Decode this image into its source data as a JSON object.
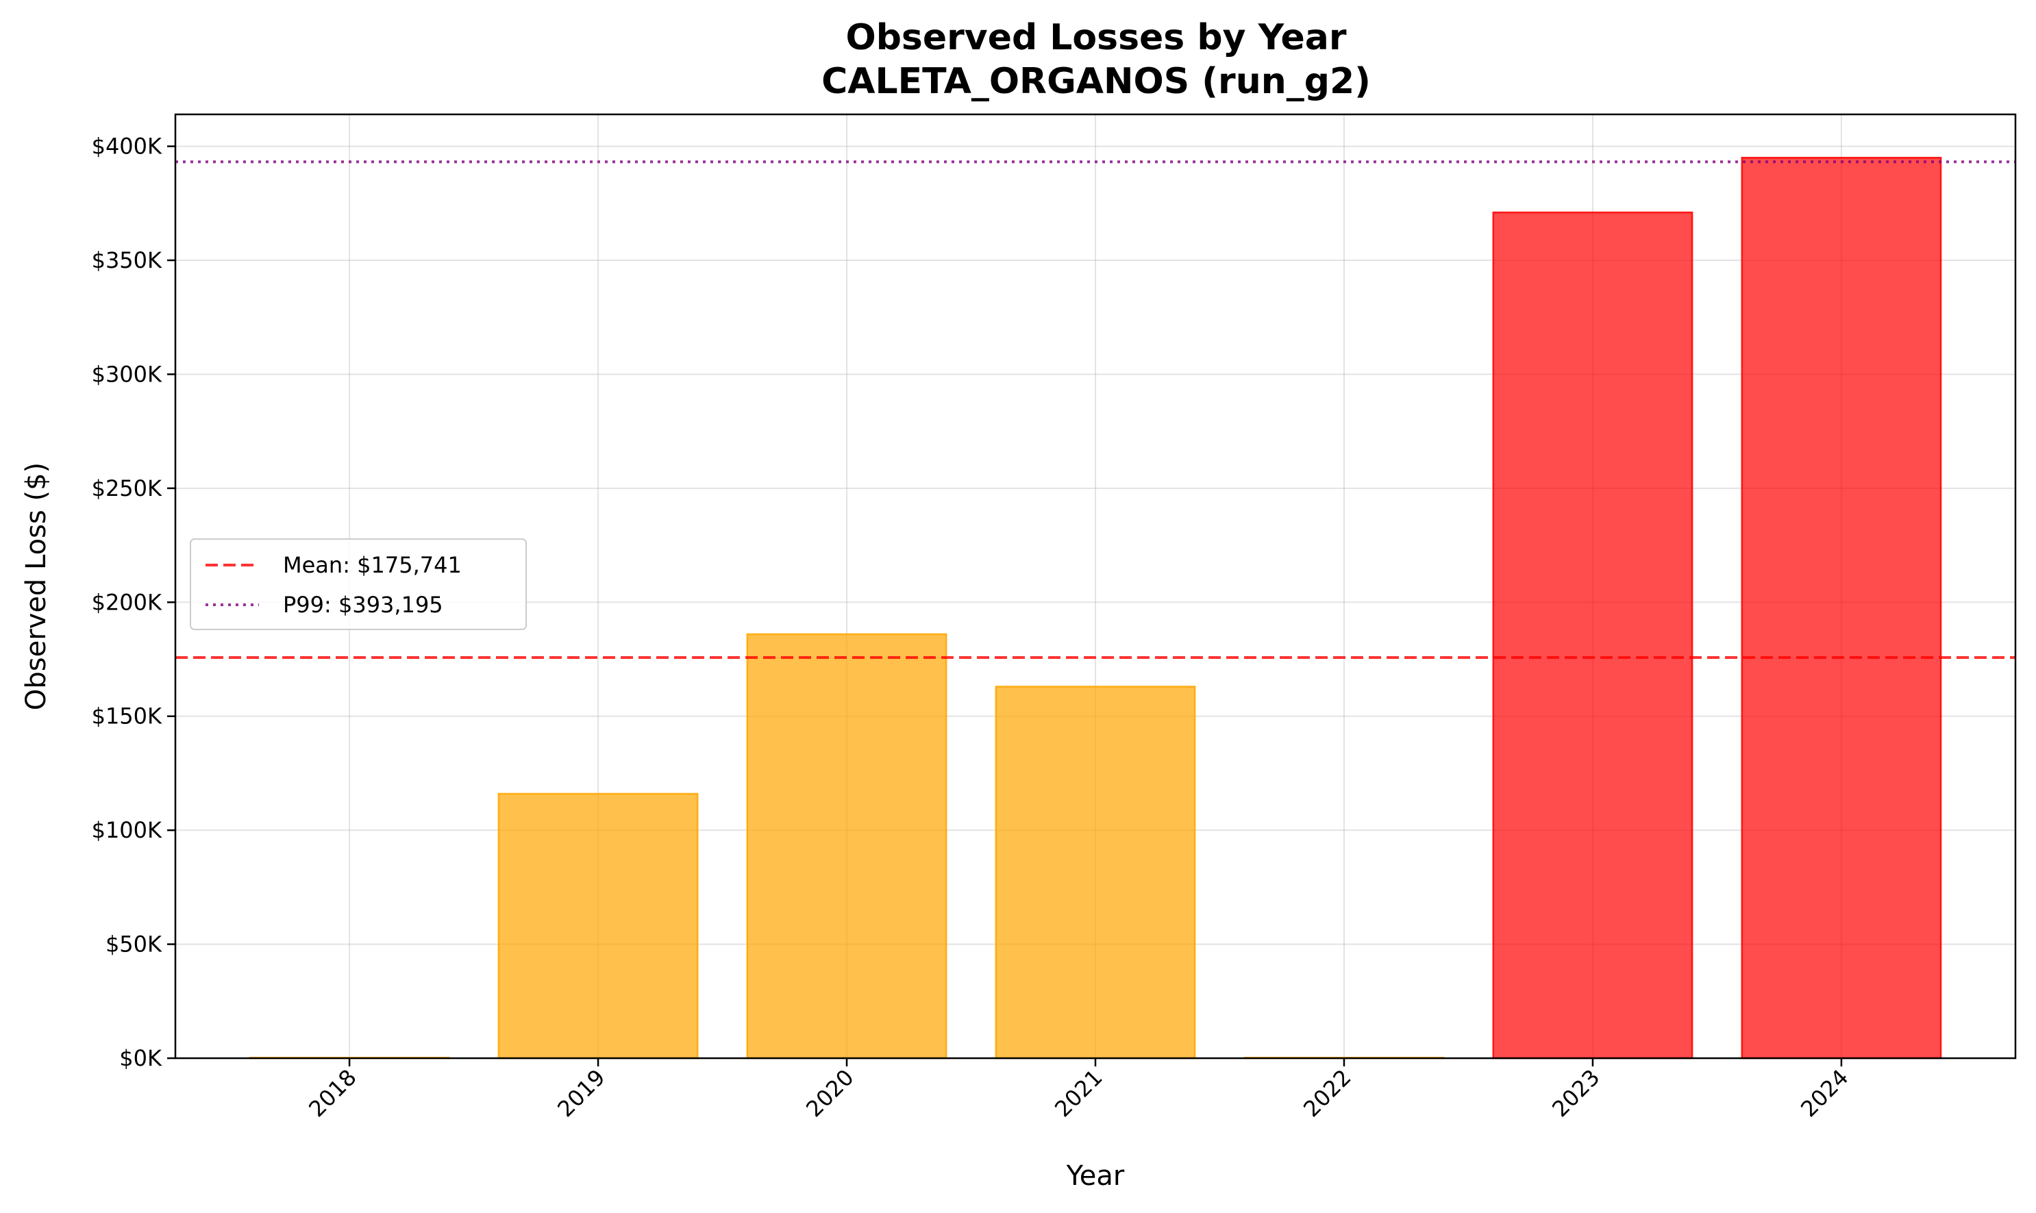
{
  "chart_data": {
    "type": "bar",
    "title": "Observed Losses by Year",
    "subtitle": "CALETA_ORGANOS (run_g2)",
    "xlabel": "Year",
    "ylabel": "Observed Loss ($)",
    "categories": [
      "2018",
      "2019",
      "2020",
      "2021",
      "2022",
      "2023",
      "2024"
    ],
    "values": [
      0,
      116000,
      186000,
      163000,
      0,
      371000,
      395000
    ],
    "bar_colors": [
      "#FFA500",
      "#FFA500",
      "#FFA500",
      "#FFA500",
      "#FFA500",
      "#FF0000",
      "#FF0000"
    ],
    "ylim": [
      0,
      414000
    ],
    "yticks": [
      {
        "value": 0,
        "label": "$0K"
      },
      {
        "value": 50000,
        "label": "$50K"
      },
      {
        "value": 100000,
        "label": "$100K"
      },
      {
        "value": 150000,
        "label": "$150K"
      },
      {
        "value": 200000,
        "label": "$200K"
      },
      {
        "value": 250000,
        "label": "$250K"
      },
      {
        "value": 300000,
        "label": "$300K"
      },
      {
        "value": 350000,
        "label": "$350K"
      },
      {
        "value": 400000,
        "label": "$400K"
      }
    ],
    "reference_lines": [
      {
        "name": "Mean",
        "label": "Mean: $175,741",
        "value": 175741,
        "color": "#FF0000",
        "style": "dashed"
      },
      {
        "name": "P99",
        "label": "P99: $393,195",
        "value": 393195,
        "color": "#800080",
        "style": "dotted"
      }
    ],
    "grid": true,
    "legend_position": "center-left"
  }
}
